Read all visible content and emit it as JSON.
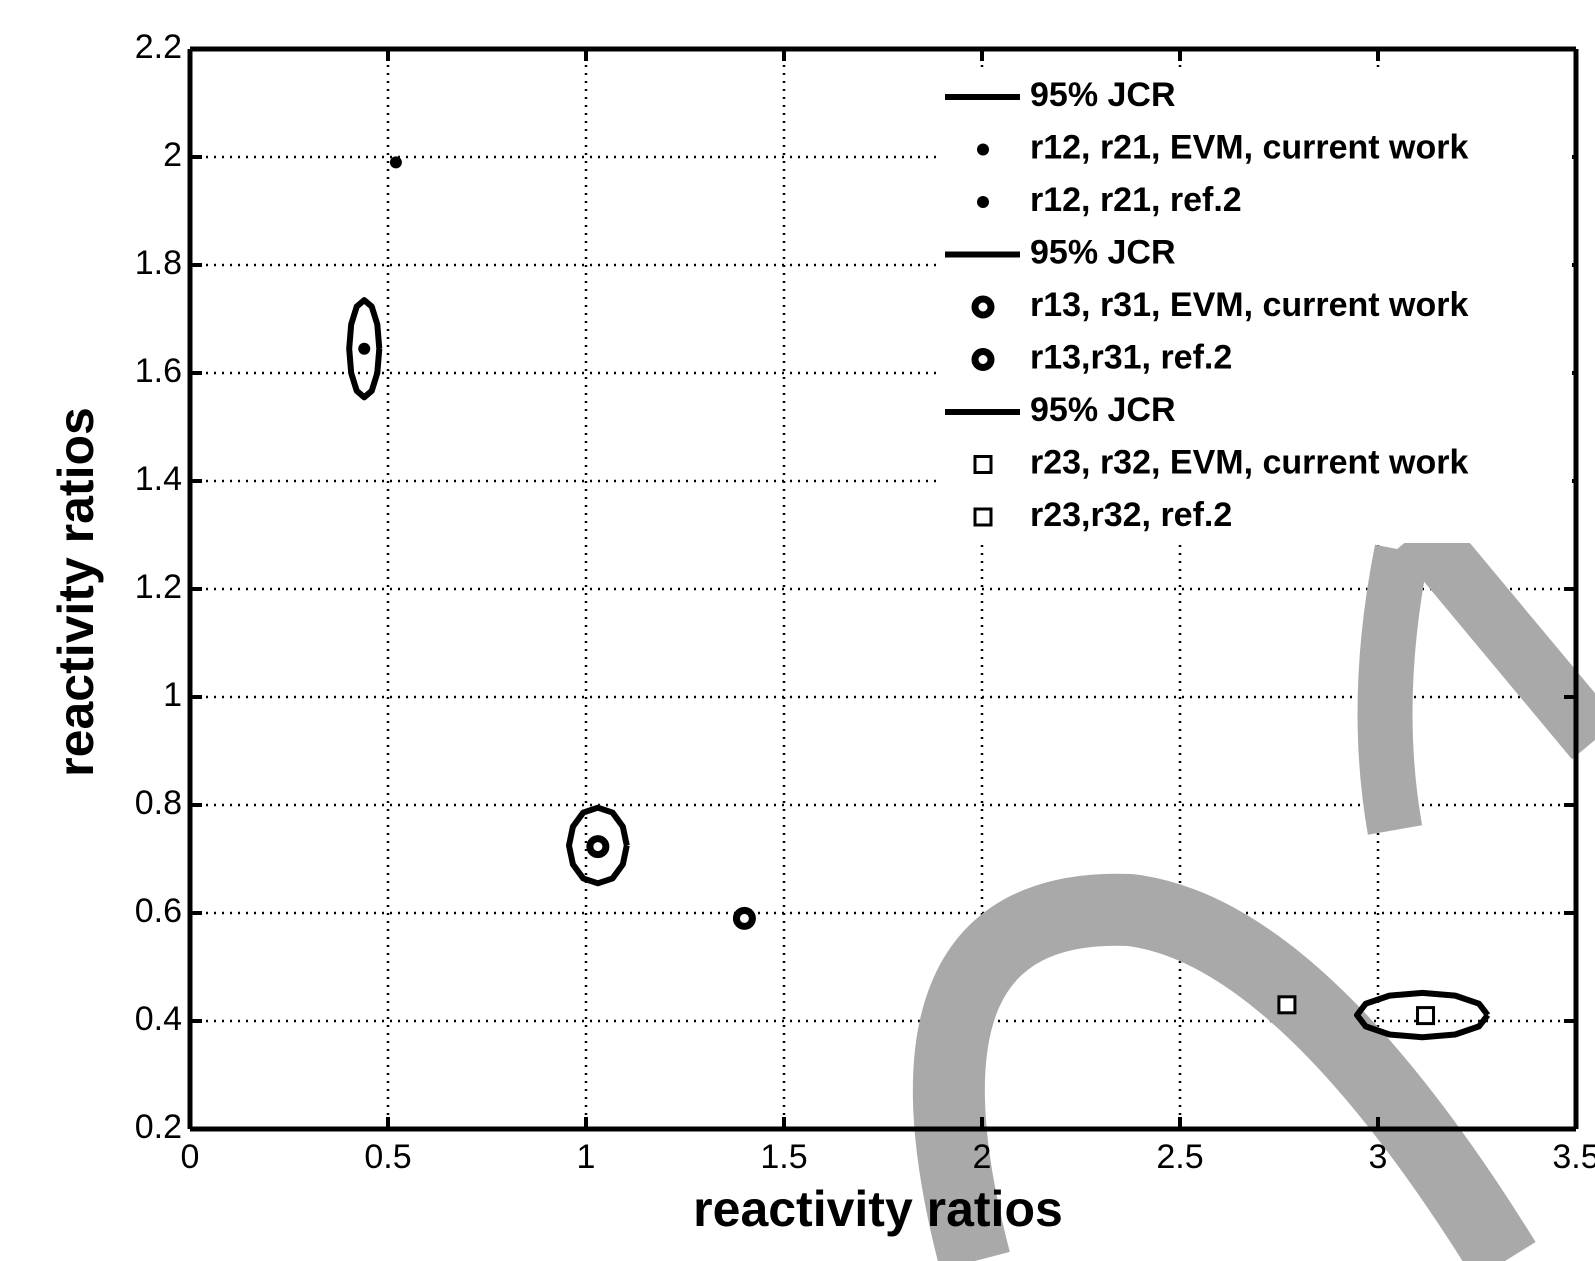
{
  "chart_data": {
    "type": "scatter",
    "x_label": "reactivity ratios",
    "y_label": "reactivity ratios",
    "xlim": [
      0,
      3.5
    ],
    "xticks": [
      0,
      0.5,
      1,
      1.5,
      2,
      2.5,
      3,
      3.5
    ],
    "ylim": [
      0.2,
      2.2
    ],
    "yticks": [
      0.2,
      0.4,
      0.6,
      0.8,
      1,
      1.2,
      1.4,
      1.6,
      1.8,
      2,
      2.2
    ],
    "grid": true,
    "legend": "upper right",
    "series": [
      {
        "name": "95% JCR",
        "marker": "line",
        "color": "#000000",
        "x": [
          0.478,
          0.473,
          0.459,
          0.44,
          0.421,
          0.407,
          0.402,
          0.407,
          0.421,
          0.44,
          0.459,
          0.473,
          0.478
        ],
        "values": [
          1.645,
          1.69,
          1.723,
          1.735,
          1.723,
          1.69,
          1.645,
          1.6,
          1.567,
          1.555,
          1.567,
          1.6,
          1.645
        ]
      },
      {
        "name": "r12, r21, EVM, current work",
        "marker": "dot",
        "color": "#000000",
        "x": [
          0.44
        ],
        "values": [
          1.645
        ]
      },
      {
        "name": "r12, r21, ref.2",
        "marker": "dot",
        "color": "#000000",
        "x": [
          0.52
        ],
        "values": [
          1.99
        ]
      },
      {
        "name": "95% JCR",
        "marker": "line",
        "color": "#000000",
        "x": [
          1.103,
          1.093,
          1.067,
          1.03,
          0.993,
          0.967,
          0.957,
          0.967,
          0.993,
          1.03,
          1.067,
          1.093,
          1.103
        ],
        "values": [
          0.725,
          0.76,
          0.786,
          0.795,
          0.786,
          0.76,
          0.725,
          0.69,
          0.664,
          0.655,
          0.664,
          0.69,
          0.725
        ]
      },
      {
        "name": "r13, r31, EVM, current work",
        "marker": "ring",
        "color": "#000000",
        "x": [
          1.03
        ],
        "values": [
          0.723
        ]
      },
      {
        "name": "r13,r31, ref.2",
        "marker": "ring",
        "color": "#000000",
        "x": [
          1.4
        ],
        "values": [
          0.59
        ]
      },
      {
        "name": "95% JCR",
        "marker": "line",
        "color": "#000000",
        "x": [
          3.277,
          3.255,
          3.195,
          3.112,
          3.029,
          2.969,
          2.947,
          2.969,
          3.029,
          3.112,
          3.195,
          3.255,
          3.277
        ],
        "values": [
          0.411,
          0.432,
          0.447,
          0.452,
          0.447,
          0.432,
          0.411,
          0.39,
          0.375,
          0.37,
          0.375,
          0.39,
          0.411
        ]
      },
      {
        "name": "r23, r32, EVM, current work",
        "marker": "square",
        "color": "#000000",
        "x": [
          3.12
        ],
        "values": [
          0.41
        ]
      },
      {
        "name": "r23,r32, ref.2",
        "marker": "square",
        "color": "#000000",
        "x": [
          2.77
        ],
        "values": [
          0.43
        ]
      }
    ]
  }
}
